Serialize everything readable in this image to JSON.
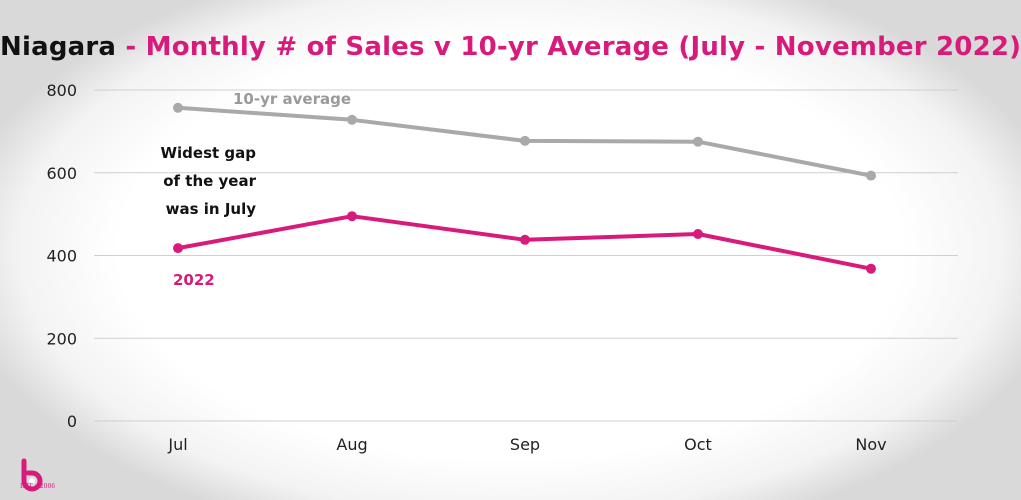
{
  "title": {
    "region": "Niagara",
    "rest": " - Monthly # of Sales v 10-yr Average (July - November 2022)"
  },
  "colors": {
    "accent": "#d81b7a",
    "average": "#a9a9a9",
    "grid": "#cfcfcf"
  },
  "annotation": {
    "line1": "Widest gap",
    "line2": "of the year",
    "line3": "was in July"
  },
  "logo": {
    "text": "EST • 2006"
  },
  "chart_data": {
    "type": "line",
    "categories": [
      "Jul",
      "Aug",
      "Sep",
      "Oct",
      "Nov"
    ],
    "ylim": [
      0,
      800
    ],
    "yticks": [
      0,
      200,
      400,
      600,
      800
    ],
    "grid": true,
    "series": [
      {
        "name": "10-yr average",
        "color": "#a9a9a9",
        "values": [
          757,
          728,
          677,
          675,
          593
        ]
      },
      {
        "name": "2022",
        "color": "#d81b7a",
        "values": [
          418,
          495,
          438,
          452,
          368
        ]
      }
    ]
  }
}
